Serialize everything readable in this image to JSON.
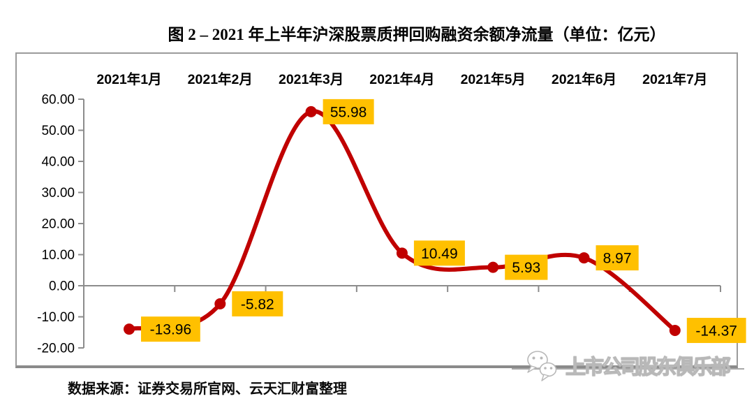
{
  "page": {
    "title": "图 2 –  2021 年上半年沪深股票质押回购融资余额净流量（单位：亿元）",
    "source_note": "数据来源：证券交易所官网、云天汇财富整理",
    "watermark_text": "上市公司股东俱乐部"
  },
  "chart_data": {
    "type": "line",
    "title": "2021 年上半年沪深股票质押回购融资余额净流量",
    "unit": "亿元",
    "categories": [
      "2021年1月",
      "2021年2月",
      "2021年3月",
      "2021年4月",
      "2021年5月",
      "2021年6月",
      "2021年7月"
    ],
    "values": [
      -13.96,
      -5.82,
      55.98,
      10.49,
      5.93,
      8.97,
      -14.37
    ],
    "data_labels": [
      "-13.96",
      "-5.82",
      "55.98",
      "10.49",
      "5.93",
      "8.97",
      "-14.37"
    ],
    "ylim": [
      -20,
      60
    ],
    "y_ticks": [
      "60.00",
      "50.00",
      "40.00",
      "30.00",
      "20.00",
      "10.00",
      "0.00",
      "-10.00",
      "-20.00"
    ],
    "grid": false,
    "legend": "none",
    "smooth": true,
    "colors": {
      "line": "#C00000",
      "marker": "#C00000",
      "data_label_bg": "#FFC000",
      "data_label_text": "#000000",
      "axis": "#8c8c8c",
      "text": "#000000"
    }
  }
}
